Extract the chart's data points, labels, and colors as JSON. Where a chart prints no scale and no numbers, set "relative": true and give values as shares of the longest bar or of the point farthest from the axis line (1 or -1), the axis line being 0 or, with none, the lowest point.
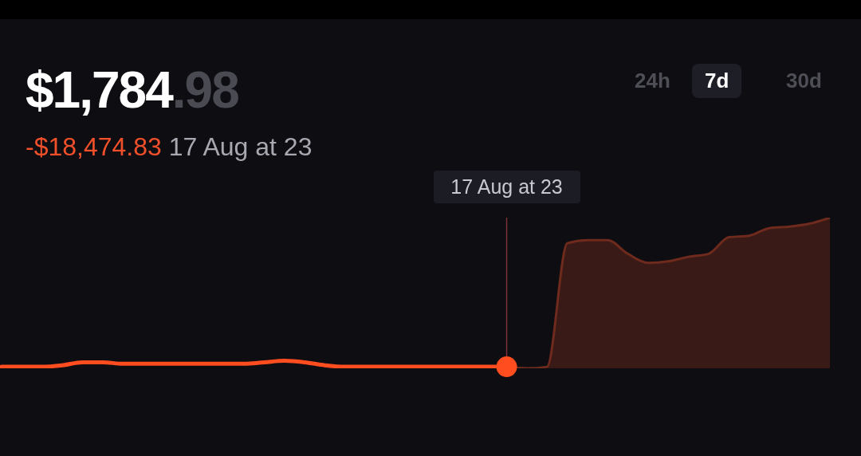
{
  "chart_data": {
    "type": "line",
    "relative": true,
    "title": "$1,784.98",
    "marker": "none",
    "line_style": "solid",
    "annotations": [
      "-$18,474.83",
      "17 Aug at 23",
      "24h",
      "7d",
      "30d",
      "17 Aug at 23"
    ],
    "categories": [
      null,
      null,
      null,
      null,
      null,
      null,
      null,
      null,
      null,
      null,
      null,
      null,
      null,
      null,
      null,
      null,
      null,
      null,
      null,
      null,
      null,
      null,
      null,
      null,
      null,
      null,
      null,
      null,
      null,
      null,
      null,
      null,
      null,
      null,
      null,
      null,
      null,
      null,
      null,
      null,
      null,
      null
    ],
    "series": [
      {
        "color": "#ff4d1f",
        "values": [
          0.01,
          0.01,
          0.01,
          0.02,
          0.04,
          0.04,
          0.03,
          0.03,
          0.03,
          0.03,
          0.03,
          0.03,
          0.03,
          0.04,
          0.05,
          0.04,
          0.02,
          0.01,
          0.01,
          0.01,
          0.01,
          0.01,
          0.01,
          0.01,
          0.01,
          0.01,
          null,
          null,
          null,
          null,
          null,
          null,
          null,
          null,
          null,
          null,
          null,
          null,
          null,
          null,
          null,
          null
        ]
      },
      {
        "type": "area",
        "color": "#6e2a1c",
        "values": [
          null,
          null,
          null,
          null,
          null,
          null,
          null,
          null,
          null,
          null,
          null,
          null,
          null,
          null,
          null,
          null,
          null,
          null,
          null,
          null,
          null,
          null,
          null,
          null,
          null,
          0.01,
          0,
          0.01,
          0.83,
          0.85,
          0.85,
          0.76,
          0.7,
          0.71,
          0.74,
          0.76,
          0.87,
          0.88,
          0.93,
          0.94,
          0.96,
          1
        ]
      }
    ]
  }
}
